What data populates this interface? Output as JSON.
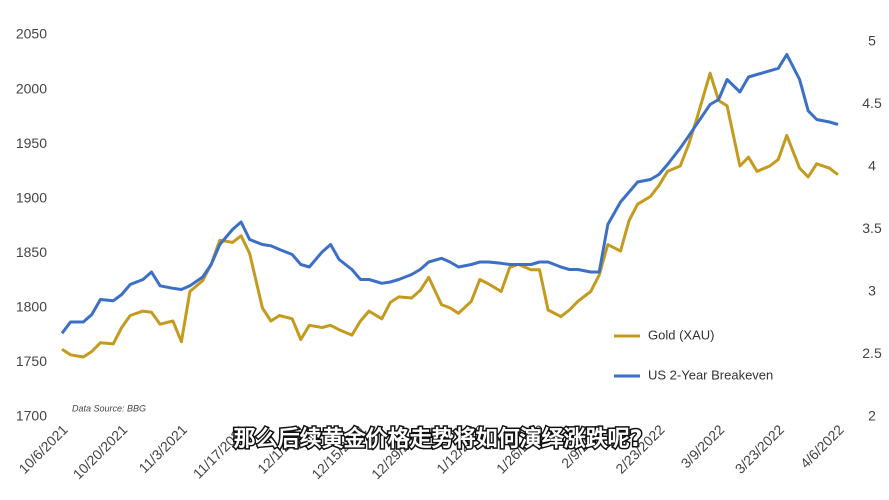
{
  "chart_data": {
    "type": "line",
    "x": [
      "10/6/2021",
      "10/8/2021",
      "10/11/2021",
      "10/13/2021",
      "10/15/2021",
      "10/18/2021",
      "10/20/2021",
      "10/22/2021",
      "10/25/2021",
      "10/27/2021",
      "10/29/2021",
      "11/1/2021",
      "11/3/2021",
      "11/5/2021",
      "11/8/2021",
      "11/10/2021",
      "11/12/2021",
      "11/15/2021",
      "11/17/2021",
      "11/19/2021",
      "11/22/2021",
      "11/24/2021",
      "11/26/2021",
      "11/29/2021",
      "12/1/2021",
      "12/3/2021",
      "12/6/2021",
      "12/8/2021",
      "12/10/2021",
      "12/13/2021",
      "12/15/2021",
      "12/17/2021",
      "12/20/2021",
      "12/22/2021",
      "12/24/2021",
      "12/27/2021",
      "12/29/2021",
      "12/31/2021",
      "1/3/2022",
      "1/5/2022",
      "1/7/2022",
      "1/10/2022",
      "1/12/2022",
      "1/14/2022",
      "1/17/2022",
      "1/19/2022",
      "1/21/2022",
      "1/24/2022",
      "1/26/2022",
      "1/28/2022",
      "1/31/2022",
      "2/2/2022",
      "2/4/2022",
      "2/7/2022",
      "2/9/2022",
      "2/11/2022",
      "2/14/2022",
      "2/16/2022",
      "2/18/2022",
      "2/21/2022",
      "2/23/2022",
      "2/25/2022",
      "2/28/2022",
      "3/2/2022",
      "3/4/2022",
      "3/7/2022",
      "3/9/2022",
      "3/11/2022",
      "3/14/2022",
      "3/16/2022",
      "3/18/2022",
      "3/21/2022",
      "3/23/2022",
      "3/25/2022",
      "3/28/2022",
      "3/30/2022",
      "4/1/2022",
      "4/4/2022",
      "4/6/2022"
    ],
    "series": [
      {
        "name": "Gold (XAU)",
        "color": "#c49a1f",
        "values": [
          1762,
          1757,
          1755,
          1760,
          1768,
          1767,
          1782,
          1793,
          1797,
          1796,
          1785,
          1788,
          1769,
          1815,
          1825,
          1840,
          1862,
          1860,
          1866,
          1850,
          1800,
          1788,
          1793,
          1790,
          1771,
          1784,
          1782,
          1784,
          1780,
          1775,
          1788,
          1797,
          1790,
          1805,
          1810,
          1809,
          1816,
          1828,
          1803,
          1800,
          1795,
          1806,
          1826,
          1822,
          1815,
          1837,
          1840,
          1835,
          1835,
          1798,
          1792,
          1798,
          1806,
          1815,
          1830,
          1858,
          1852,
          1880,
          1895,
          1902,
          1912,
          1925,
          1930,
          1950,
          1975,
          2015,
          1990,
          1985,
          1930,
          1938,
          1925,
          1930,
          1936,
          1958,
          1928,
          1920,
          1932,
          1928,
          1922
        ]
      },
      {
        "name": "US 2-Year Breakeven",
        "color": "#3c6fc6",
        "axis": "y2",
        "values": [
          2.67,
          2.76,
          2.76,
          2.82,
          2.94,
          2.93,
          2.98,
          3.06,
          3.1,
          3.16,
          3.05,
          3.03,
          3.02,
          3.05,
          3.12,
          3.22,
          3.38,
          3.5,
          3.56,
          3.42,
          3.38,
          3.37,
          3.34,
          3.3,
          3.22,
          3.2,
          3.32,
          3.38,
          3.26,
          3.18,
          3.1,
          3.1,
          3.07,
          3.08,
          3.1,
          3.14,
          3.18,
          3.24,
          3.27,
          3.24,
          3.2,
          3.22,
          3.24,
          3.24,
          3.23,
          3.22,
          3.22,
          3.22,
          3.24,
          3.24,
          3.2,
          3.18,
          3.18,
          3.16,
          3.16,
          3.54,
          3.72,
          3.8,
          3.88,
          3.9,
          3.94,
          4.02,
          4.15,
          4.25,
          4.35,
          4.5,
          4.54,
          4.7,
          4.6,
          4.72,
          4.74,
          4.77,
          4.79,
          4.9,
          4.7,
          4.45,
          4.38,
          4.36,
          4.34
        ]
      }
    ],
    "xlim": [
      "10/6/2021",
      "4/6/2022"
    ],
    "xticks": [
      "10/6/2021",
      "10/20/2021",
      "11/3/2021",
      "11/17/2021",
      "12/1/2021",
      "12/15/2021",
      "12/29/2021",
      "1/12/2022",
      "1/26/2022",
      "2/9/2022",
      "2/23/2022",
      "3/9/2022",
      "3/23/2022",
      "4/6/2022"
    ],
    "ylim": [
      1700,
      2050
    ],
    "yticks": [
      1700,
      1750,
      1800,
      1850,
      1900,
      1950,
      2000,
      2050
    ],
    "y2lim": [
      2,
      5.056
    ],
    "y2ticks": [
      2,
      2.5,
      3,
      3.5,
      4,
      4.5,
      5
    ],
    "legend": "right",
    "source_note": "Data Source: BBG",
    "caption": "那么后续黄金价格走势将如何演绎涨跌呢?"
  }
}
